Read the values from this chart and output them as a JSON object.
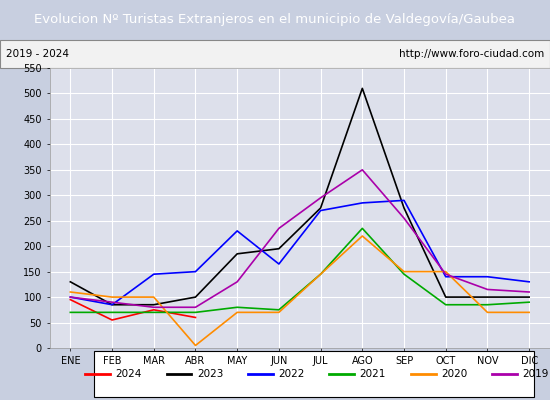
{
  "title": "Evolucion Nº Turistas Extranjeros en el municipio de Valdegovía/Gaubea",
  "subtitle_left": "2019 - 2024",
  "subtitle_right": "http://www.foro-ciudad.com",
  "title_bg_color": "#4472c4",
  "title_text_color": "#ffffff",
  "months": [
    "ENE",
    "FEB",
    "MAR",
    "ABR",
    "MAY",
    "JUN",
    "JUL",
    "AGO",
    "SEP",
    "OCT",
    "NOV",
    "DIC"
  ],
  "ylim": [
    0,
    550
  ],
  "yticks": [
    0,
    50,
    100,
    150,
    200,
    250,
    300,
    350,
    400,
    450,
    500,
    550
  ],
  "series": {
    "2024": {
      "color": "#ff0000",
      "data": [
        95,
        55,
        75,
        60,
        null,
        null,
        null,
        null,
        null,
        null,
        null,
        null
      ]
    },
    "2023": {
      "color": "#000000",
      "data": [
        130,
        85,
        85,
        100,
        185,
        195,
        275,
        510,
        275,
        100,
        100,
        100
      ]
    },
    "2022": {
      "color": "#0000ff",
      "data": [
        100,
        85,
        145,
        150,
        230,
        165,
        270,
        285,
        290,
        140,
        140,
        130
      ]
    },
    "2021": {
      "color": "#00aa00",
      "data": [
        70,
        70,
        70,
        70,
        80,
        75,
        145,
        235,
        145,
        85,
        85,
        90
      ]
    },
    "2020": {
      "color": "#ff8c00",
      "data": [
        110,
        100,
        100,
        5,
        70,
        70,
        145,
        220,
        150,
        150,
        70,
        70
      ]
    },
    "2019": {
      "color": "#aa00aa",
      "data": [
        100,
        90,
        80,
        80,
        130,
        235,
        295,
        350,
        255,
        145,
        115,
        110
      ]
    }
  },
  "legend_order": [
    "2024",
    "2023",
    "2022",
    "2021",
    "2020",
    "2019"
  ],
  "plot_bg_color": "#dde0eb",
  "grid_color": "#ffffff",
  "outer_bg_color": "#c8cfe0",
  "subtitle_bg": "#f2f2f2"
}
